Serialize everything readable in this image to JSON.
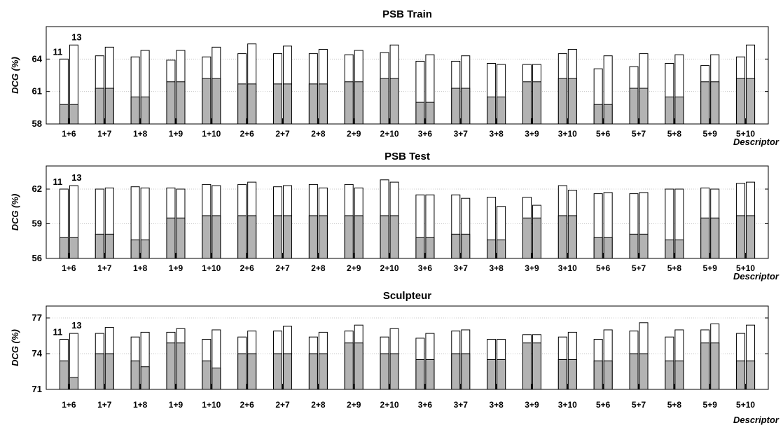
{
  "chart_data": [
    {
      "type": "bar",
      "title": "PSB Train",
      "ylabel": "DCG (%)",
      "xlabel": "Descriptor",
      "ylim": [
        58,
        67
      ],
      "yticks": [
        58,
        61,
        64
      ],
      "grid": true,
      "categories": [
        "1+6",
        "1+7",
        "1+8",
        "1+9",
        "1+10",
        "2+6",
        "2+7",
        "2+8",
        "2+9",
        "2+10",
        "3+6",
        "3+7",
        "3+8",
        "3+9",
        "3+10",
        "5+6",
        "5+7",
        "5+8",
        "5+9",
        "5+10"
      ],
      "bar_labels": [
        "11",
        "13"
      ],
      "series": [
        {
          "name": "11",
          "base": [
            59.8,
            61.3,
            60.5,
            61.9,
            62.2,
            61.7,
            61.7,
            61.7,
            61.9,
            62.2,
            60.0,
            61.3,
            60.5,
            61.9,
            62.2,
            59.8,
            61.3,
            60.5,
            61.9,
            62.2
          ],
          "values": [
            64.0,
            64.3,
            64.2,
            63.9,
            64.2,
            64.5,
            64.5,
            64.5,
            64.4,
            64.6,
            63.8,
            63.8,
            63.6,
            63.5,
            64.5,
            63.1,
            63.3,
            63.6,
            63.4,
            64.2
          ]
        },
        {
          "name": "13",
          "base": [
            59.8,
            61.3,
            60.5,
            61.9,
            62.2,
            61.7,
            61.7,
            61.7,
            61.9,
            62.2,
            60.0,
            61.3,
            60.5,
            61.9,
            62.2,
            59.8,
            61.3,
            60.5,
            61.9,
            62.2
          ],
          "values": [
            65.3,
            65.1,
            64.8,
            64.8,
            65.1,
            65.4,
            65.2,
            64.9,
            64.8,
            65.3,
            64.4,
            64.3,
            63.5,
            63.5,
            64.9,
            64.3,
            64.5,
            64.4,
            64.4,
            65.3
          ]
        }
      ]
    },
    {
      "type": "bar",
      "title": "PSB Test",
      "ylabel": "DCG (%)",
      "xlabel": "Descriptor",
      "ylim": [
        56,
        64
      ],
      "yticks": [
        56,
        59,
        62
      ],
      "grid": true,
      "categories": [
        "1+6",
        "1+7",
        "1+8",
        "1+9",
        "1+10",
        "2+6",
        "2+7",
        "2+8",
        "2+9",
        "2+10",
        "3+6",
        "3+7",
        "3+8",
        "3+9",
        "3+10",
        "5+6",
        "5+7",
        "5+8",
        "5+9",
        "5+10"
      ],
      "bar_labels": [
        "11",
        "13"
      ],
      "series": [
        {
          "name": "11",
          "base": [
            57.8,
            58.1,
            57.6,
            59.5,
            59.7,
            59.7,
            59.7,
            59.7,
            59.7,
            59.7,
            57.8,
            58.1,
            57.6,
            59.5,
            59.7,
            57.8,
            58.1,
            57.6,
            59.5,
            59.7
          ],
          "values": [
            62.0,
            62.0,
            62.2,
            62.1,
            62.4,
            62.4,
            62.2,
            62.4,
            62.4,
            62.8,
            61.5,
            61.5,
            61.3,
            61.3,
            62.3,
            61.6,
            61.6,
            62.0,
            62.1,
            62.5
          ]
        },
        {
          "name": "13",
          "base": [
            57.8,
            58.1,
            57.6,
            59.5,
            59.7,
            59.7,
            59.7,
            59.7,
            59.7,
            59.7,
            57.8,
            58.1,
            57.6,
            59.5,
            59.7,
            57.8,
            58.1,
            57.6,
            59.5,
            59.7
          ],
          "values": [
            62.3,
            62.1,
            62.1,
            62.0,
            62.3,
            62.6,
            62.3,
            62.1,
            62.1,
            62.6,
            61.5,
            61.2,
            60.5,
            60.6,
            61.9,
            61.7,
            61.7,
            62.0,
            62.0,
            62.6
          ]
        }
      ]
    },
    {
      "type": "bar",
      "title": "Sculpteur",
      "ylabel": "DCG (%)",
      "xlabel": "Descriptor",
      "ylim": [
        71,
        78
      ],
      "yticks": [
        71,
        74,
        77
      ],
      "grid": true,
      "categories": [
        "1+6",
        "1+7",
        "1+8",
        "1+9",
        "1+10",
        "2+6",
        "2+7",
        "2+8",
        "2+9",
        "2+10",
        "3+6",
        "3+7",
        "3+8",
        "3+9",
        "3+10",
        "5+6",
        "5+7",
        "5+8",
        "5+9",
        "5+10"
      ],
      "bar_labels": [
        "11",
        "13"
      ],
      "series": [
        {
          "name": "11",
          "base": [
            73.4,
            74.0,
            73.4,
            74.9,
            73.4,
            74.0,
            74.0,
            74.0,
            74.9,
            74.0,
            73.5,
            74.0,
            73.5,
            74.9,
            73.5,
            73.4,
            74.0,
            73.4,
            74.9,
            73.4
          ],
          "values": [
            75.2,
            75.7,
            75.4,
            75.8,
            75.2,
            75.4,
            75.9,
            75.4,
            75.9,
            75.4,
            75.3,
            75.9,
            75.2,
            75.6,
            75.4,
            75.2,
            75.9,
            75.4,
            76.0,
            75.7
          ]
        },
        {
          "name": "13",
          "base": [
            72.0,
            74.0,
            72.9,
            74.9,
            72.8,
            74.0,
            74.0,
            74.0,
            74.9,
            74.0,
            73.5,
            74.0,
            73.5,
            74.9,
            73.5,
            73.4,
            74.0,
            73.4,
            74.9,
            73.4
          ],
          "values": [
            75.7,
            76.2,
            75.8,
            76.1,
            76.0,
            75.9,
            76.3,
            75.8,
            76.4,
            76.1,
            75.7,
            76.0,
            75.2,
            75.6,
            75.8,
            76.0,
            76.6,
            76.0,
            76.5,
            76.4
          ]
        }
      ]
    }
  ],
  "colors": {
    "base_fill": "#b3b3b3",
    "bar_fill": "#ffffff",
    "stroke": "#000000",
    "grid": "#c8c8c8"
  }
}
